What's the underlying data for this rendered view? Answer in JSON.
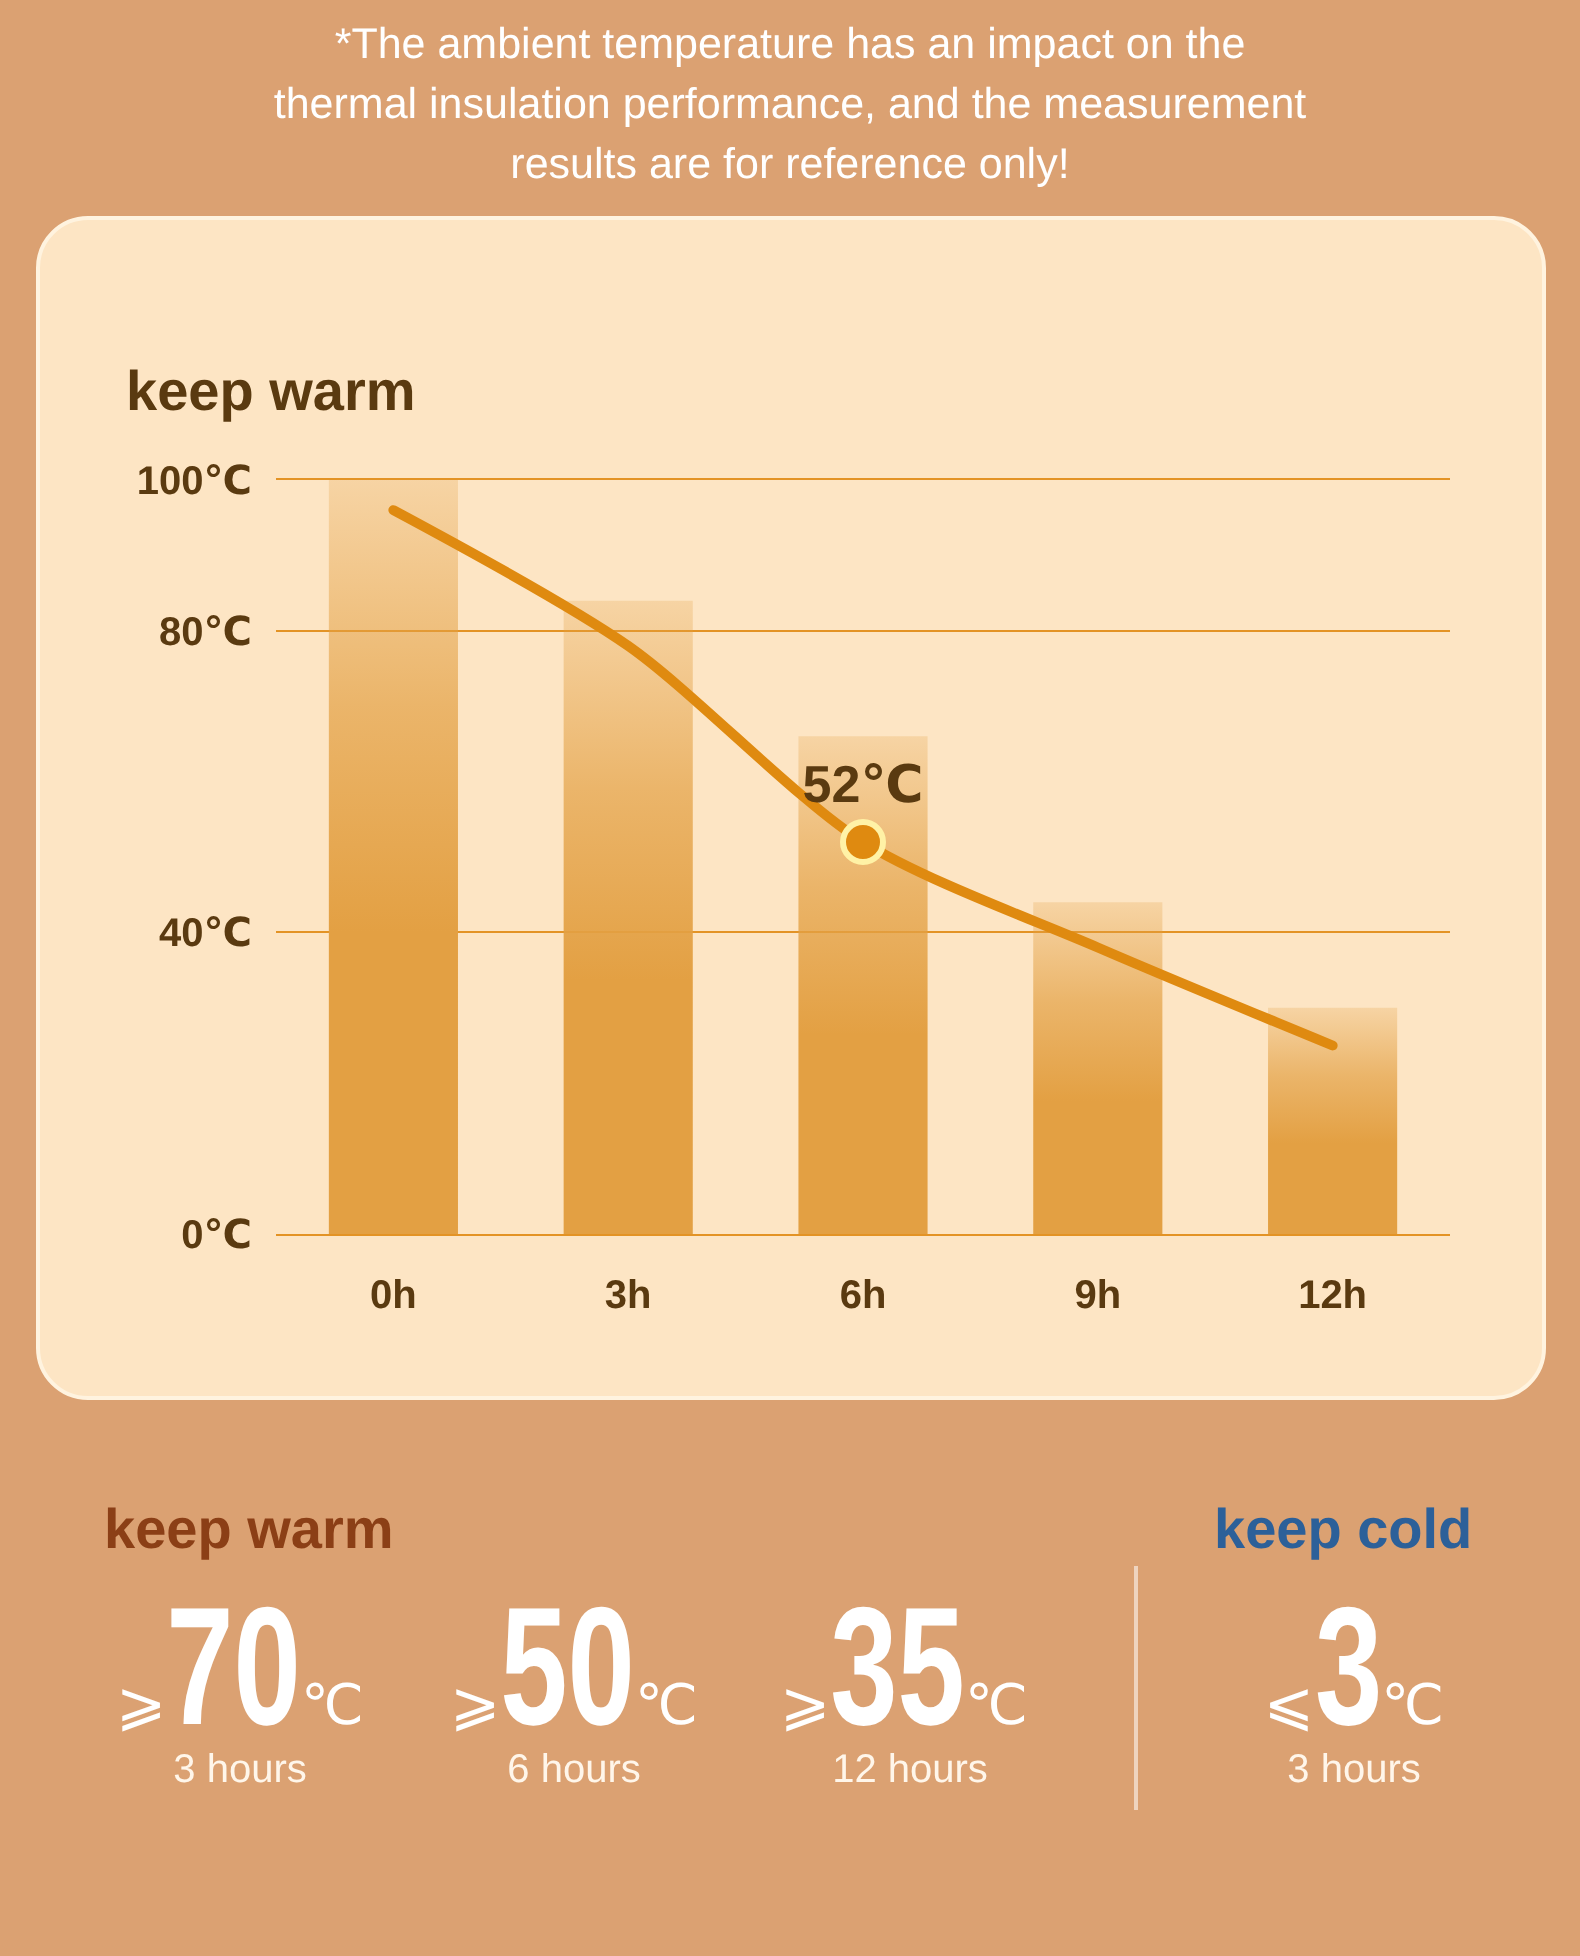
{
  "chart_data": {
    "type": "bar",
    "title": "keep warm",
    "categories": [
      "0h",
      "3h",
      "6h",
      "9h",
      "12h"
    ],
    "series": [
      {
        "color": "#e3a043",
        "values": [
          100,
          84,
          66,
          44,
          30
        ]
      },
      {
        "type": "line",
        "color": "#df8a10",
        "line_style": "solid",
        "values": [
          96,
          78,
          52,
          38,
          25
        ]
      },
      {
        "type": "scatter",
        "color": "#df8a10",
        "marker": "circle",
        "x": [
          "6h"
        ],
        "values": [
          52
        ],
        "value_labels": [
          "52℃"
        ]
      }
    ],
    "ylim": [
      0,
      100
    ],
    "yticks": [
      {
        "value": 0,
        "label": "0℃"
      },
      {
        "value": 40,
        "label": "40℃"
      },
      {
        "value": 80,
        "label": "80℃"
      },
      {
        "value": 100,
        "label": "100℃"
      }
    ],
    "grid": "y",
    "annotations": [
      "*The ambient temperature has an impact on the thermal insulation performance, and the measurement results are for reference only!",
      "keep warm",
      "⩾70℃",
      "3 hours",
      "⩾50℃",
      "6 hours",
      "⩾35℃",
      "12 hours",
      "keep cold",
      "⩽3℃",
      "3 hours"
    ]
  }
}
